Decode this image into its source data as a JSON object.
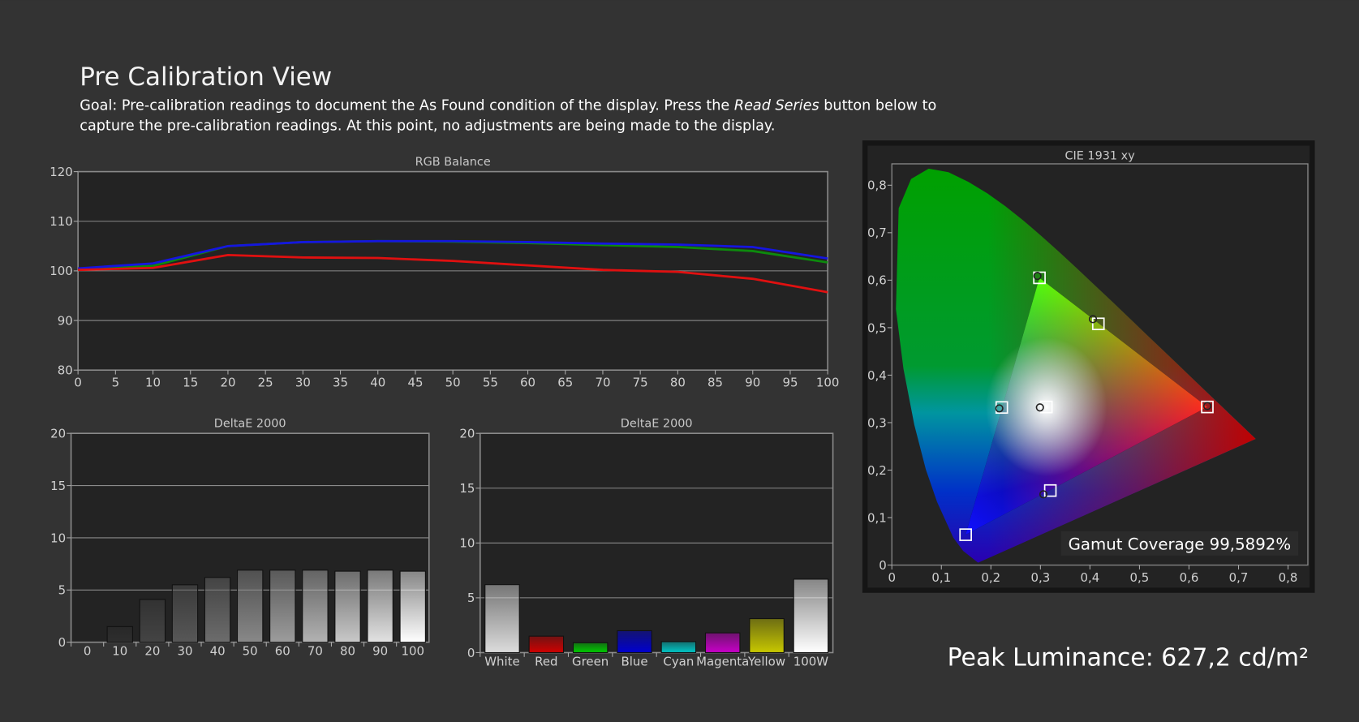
{
  "header": {
    "title": "Pre Calibration View",
    "description": [
      "Goal: Pre-calibration readings to document the As Found condition of the display. Press the ",
      "Read Series",
      " button below to",
      "capture the pre-calibration readings. At this point, no adjustments are being made to the display."
    ]
  },
  "chart_data": [
    {
      "type": "line",
      "title": "RGB Balance",
      "x": [
        0,
        10,
        20,
        30,
        40,
        50,
        60,
        70,
        80,
        90,
        100
      ],
      "series": [
        {
          "color": "#0d8a0d",
          "values": [
            100.3,
            101,
            105,
            105.8,
            106,
            105.9,
            105.6,
            105.2,
            104.8,
            104,
            101.7
          ]
        },
        {
          "color": "#1515e0",
          "values": [
            100.5,
            101.5,
            105,
            105.8,
            106,
            106,
            105.8,
            105.5,
            105.3,
            104.8,
            102.5
          ]
        },
        {
          "color": "#e01010",
          "values": [
            100.2,
            100.6,
            103.2,
            102.7,
            102.6,
            102,
            101.1,
            100.2,
            99.8,
            98.4,
            95.7
          ]
        }
      ],
      "xlim": [
        0,
        100
      ],
      "xticks": [
        0,
        5,
        10,
        15,
        20,
        25,
        30,
        35,
        40,
        45,
        50,
        55,
        60,
        65,
        70,
        75,
        80,
        85,
        90,
        95,
        100
      ],
      "ylim": [
        80,
        120
      ],
      "yticks": [
        80,
        90,
        100,
        110,
        120
      ],
      "grid": true
    },
    {
      "type": "bar",
      "title": "DeltaE 2000",
      "categories": [
        "0",
        "10",
        "20",
        "30",
        "40",
        "50",
        "60",
        "70",
        "80",
        "90",
        "100"
      ],
      "values": [
        0,
        1.5,
        4.1,
        5.5,
        6.2,
        6.9,
        6.9,
        6.9,
        6.8,
        6.9,
        6.8
      ],
      "colors": [
        "#111111",
        "#2e2e2e",
        "#444444",
        "#575757",
        "#6c6c6c",
        "#888888",
        "#9c9c9c",
        "#b2b2b2",
        "#c8c8c8",
        "#e2e2e2",
        "#ffffff"
      ],
      "ylim": [
        0,
        20
      ],
      "yticks": [
        0,
        5,
        10,
        15,
        20
      ],
      "grid": true
    },
    {
      "type": "bar",
      "title": "DeltaE 2000",
      "categories": [
        "White",
        "Red",
        "Green",
        "Blue",
        "Cyan",
        "Magenta",
        "Yellow",
        "100W"
      ],
      "values": [
        6.2,
        1.5,
        0.9,
        2,
        1,
        1.8,
        3.1,
        6.7
      ],
      "colors": [
        "#dcdcdc",
        "#d00000",
        "#00cc00",
        "#0000d0",
        "#00c8c8",
        "#c800c8",
        "#c8c800",
        "#ffffff"
      ],
      "ylim": [
        0,
        20
      ],
      "yticks": [
        0,
        5,
        10,
        15,
        20
      ],
      "grid": true
    },
    {
      "type": "scatter",
      "title": "CIE 1931 xy",
      "annotation": "Gamut Coverage 99,5892%",
      "series": [
        {
          "marker": "square",
          "color": "#ffffff",
          "x": [
            0.637,
            0.298,
            0.149,
            0.312,
            0.222,
            0.32,
            0.417
          ],
          "y": [
            0.333,
            0.605,
            0.064,
            0.333,
            0.332,
            0.157,
            0.508
          ]
        },
        {
          "marker": "circle",
          "color": "#222222",
          "x": [
            0.637,
            0.294,
            0.406,
            0.299,
            0.217,
            0.306
          ],
          "y": [
            0.335,
            0.609,
            0.518,
            0.332,
            0.33,
            0.149
          ]
        }
      ],
      "xlim": [
        0,
        0.84
      ],
      "ylim": [
        0,
        0.845
      ],
      "xticks": [
        0,
        {
          "value": 0.1,
          "label": "0,1"
        },
        {
          "value": 0.2,
          "label": "0,2"
        },
        {
          "value": 0.3,
          "label": "0,3"
        },
        {
          "value": 0.4,
          "label": "0,4"
        },
        {
          "value": 0.5,
          "label": "0,5"
        },
        {
          "value": 0.6,
          "label": "0,6"
        },
        {
          "value": 0.7,
          "label": "0,7"
        },
        {
          "value": 0.8,
          "label": "0,8"
        }
      ],
      "yticks": [
        0,
        {
          "value": 0.1,
          "label": "0,1"
        },
        {
          "value": 0.2,
          "label": "0,2"
        },
        {
          "value": 0.3,
          "label": "0,3"
        },
        {
          "value": 0.4,
          "label": "0,4"
        },
        {
          "value": 0.5,
          "label": "0,5"
        },
        {
          "value": 0.6,
          "label": "0,6"
        },
        {
          "value": 0.7,
          "label": "0,7"
        },
        {
          "value": 0.8,
          "label": "0,8"
        }
      ],
      "grid": false
    }
  ],
  "footer": {
    "peak_luminance": "Peak Luminance: 627,2 cd/m²"
  }
}
